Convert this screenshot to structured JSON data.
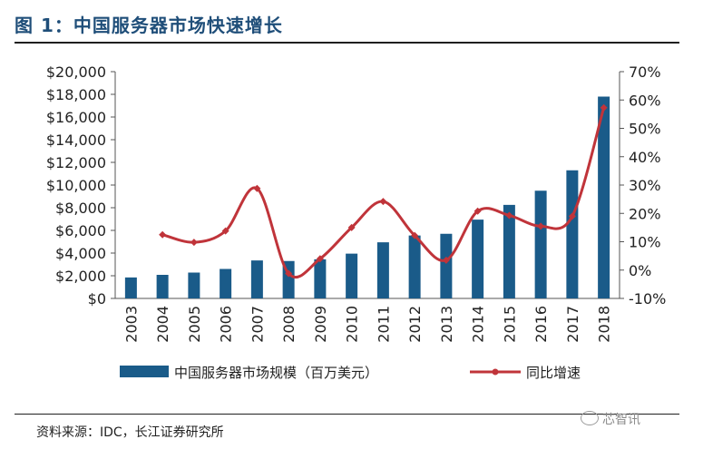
{
  "title": "图 1：中国服务器市场快速增长",
  "source": "资料来源：IDC，长江证券研究所",
  "watermark": "芯智讯",
  "colors": {
    "bar": "#1a5b89",
    "line": "#c0343a",
    "title": "#1f4e79"
  },
  "chart_data": {
    "type": "bar",
    "categories": [
      "2003",
      "2004",
      "2005",
      "2006",
      "2007",
      "2008",
      "2009",
      "2010",
      "2011",
      "2012",
      "2013",
      "2014",
      "2015",
      "2016",
      "2017",
      "2018"
    ],
    "series": [
      {
        "name": "中国服务器市场规模（百万美元）",
        "type": "bar",
        "axis": "left",
        "values": [
          1850,
          2080,
          2280,
          2600,
          3350,
          3300,
          3450,
          3950,
          4950,
          5550,
          5700,
          6950,
          8250,
          9500,
          11300,
          17800
        ]
      },
      {
        "name": "同比增速",
        "type": "line",
        "axis": "right",
        "values": [
          null,
          12.5,
          9.8,
          13.8,
          28.8,
          -1.2,
          4.0,
          15.0,
          24.2,
          12.2,
          3.5,
          20.8,
          19.3,
          15.5,
          19.0,
          57.3
        ]
      }
    ],
    "y_left": {
      "min": 0,
      "max": 20000,
      "step": 2000,
      "tick_labels": [
        "$0",
        "$2,000",
        "$4,000",
        "$6,000",
        "$8,000",
        "$10,000",
        "$12,000",
        "$14,000",
        "$16,000",
        "$18,000",
        "$20,000"
      ]
    },
    "y_right": {
      "min": -10,
      "max": 70,
      "step": 10,
      "tick_labels": [
        "-10%",
        "0%",
        "10%",
        "20%",
        "30%",
        "40%",
        "50%",
        "60%",
        "70%"
      ]
    },
    "legend_position": "bottom",
    "grid": false
  }
}
